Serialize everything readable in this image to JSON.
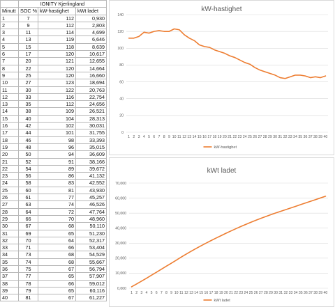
{
  "table": {
    "title": "IONITY Kjerlingland",
    "headers": [
      "Minutt",
      "SOC %",
      "kW-hastighet",
      "kWt ladet"
    ],
    "rows": [
      [
        "1",
        "7",
        "112",
        "0,930"
      ],
      [
        "2",
        "9",
        "112",
        "2,803"
      ],
      [
        "3",
        "11",
        "114",
        "4,699"
      ],
      [
        "4",
        "13",
        "119",
        "6,646"
      ],
      [
        "5",
        "15",
        "118",
        "8,639"
      ],
      [
        "6",
        "17",
        "120",
        "10,617"
      ],
      [
        "7",
        "20",
        "121",
        "12,655"
      ],
      [
        "8",
        "22",
        "120",
        "14,664"
      ],
      [
        "9",
        "25",
        "120",
        "16,660"
      ],
      [
        "10",
        "27",
        "123",
        "18,694"
      ],
      [
        "11",
        "30",
        "122",
        "20,763"
      ],
      [
        "12",
        "33",
        "116",
        "22,754"
      ],
      [
        "13",
        "35",
        "112",
        "24,656"
      ],
      [
        "14",
        "38",
        "109",
        "26,521"
      ],
      [
        "15",
        "40",
        "104",
        "28,313"
      ],
      [
        "16",
        "42",
        "102",
        "30,031"
      ],
      [
        "17",
        "44",
        "101",
        "31,755"
      ],
      [
        "18",
        "46",
        "98",
        "33,393"
      ],
      [
        "19",
        "48",
        "96",
        "35,015"
      ],
      [
        "20",
        "50",
        "94",
        "36,609"
      ],
      [
        "21",
        "52",
        "91",
        "38,166"
      ],
      [
        "22",
        "54",
        "89",
        "39,672"
      ],
      [
        "23",
        "56",
        "86",
        "41,132"
      ],
      [
        "24",
        "58",
        "83",
        "42,552"
      ],
      [
        "25",
        "60",
        "81",
        "43,930"
      ],
      [
        "26",
        "61",
        "77",
        "45,257"
      ],
      [
        "27",
        "63",
        "74",
        "46,526"
      ],
      [
        "28",
        "64",
        "72",
        "47,764"
      ],
      [
        "29",
        "66",
        "70",
        "48,960"
      ],
      [
        "30",
        "67",
        "68",
        "50,110"
      ],
      [
        "31",
        "69",
        "65",
        "51,230"
      ],
      [
        "32",
        "70",
        "64",
        "52,317"
      ],
      [
        "33",
        "71",
        "66",
        "53,404"
      ],
      [
        "34",
        "73",
        "68",
        "54,529"
      ],
      [
        "35",
        "74",
        "68",
        "55,667"
      ],
      [
        "36",
        "75",
        "67",
        "56,794"
      ],
      [
        "37",
        "77",
        "65",
        "57,907"
      ],
      [
        "38",
        "78",
        "66",
        "59,012"
      ],
      [
        "39",
        "79",
        "65",
        "60,116"
      ],
      [
        "40",
        "81",
        "67",
        "61,227"
      ]
    ]
  },
  "chart_data": [
    {
      "type": "line",
      "title": "kW-hastighet",
      "x": [
        1,
        2,
        3,
        4,
        5,
        6,
        7,
        8,
        9,
        10,
        11,
        12,
        13,
        14,
        15,
        16,
        17,
        18,
        19,
        20,
        21,
        22,
        23,
        24,
        25,
        26,
        27,
        28,
        29,
        30,
        31,
        32,
        33,
        34,
        35,
        36,
        37,
        38,
        39,
        40
      ],
      "series": [
        {
          "name": "kW-hastighet",
          "values": [
            112,
            112,
            114,
            119,
            118,
            120,
            121,
            120,
            120,
            123,
            122,
            116,
            112,
            109,
            104,
            102,
            101,
            98,
            96,
            94,
            91,
            89,
            86,
            83,
            81,
            77,
            74,
            72,
            70,
            68,
            65,
            64,
            66,
            68,
            68,
            67,
            65,
            66,
            65,
            67
          ]
        }
      ],
      "ylim": [
        0,
        140
      ],
      "yticks": [
        "0",
        "20",
        "40",
        "60",
        "80",
        "100",
        "120",
        "140"
      ],
      "grid": true,
      "legend": "bottom",
      "color": "#ED7D31"
    },
    {
      "type": "line",
      "title": "kWt ladet",
      "x": [
        1,
        2,
        3,
        4,
        5,
        6,
        7,
        8,
        9,
        10,
        11,
        12,
        13,
        14,
        15,
        16,
        17,
        18,
        19,
        20,
        21,
        22,
        23,
        24,
        25,
        26,
        27,
        28,
        29,
        30,
        31,
        32,
        33,
        34,
        35,
        36,
        37,
        38,
        39,
        40
      ],
      "series": [
        {
          "name": "kWt ladet",
          "values": [
            0.93,
            2.803,
            4.699,
            6.646,
            8.639,
            10.617,
            12.655,
            14.664,
            16.66,
            18.694,
            20.763,
            22.754,
            24.656,
            26.521,
            28.313,
            30.031,
            31.755,
            33.393,
            35.015,
            36.609,
            38.166,
            39.672,
            41.132,
            42.552,
            43.93,
            45.257,
            46.526,
            47.764,
            48.96,
            50.11,
            51.23,
            52.317,
            53.404,
            54.529,
            55.667,
            56.794,
            57.907,
            59.012,
            60.116,
            61.227
          ]
        }
      ],
      "ylim": [
        0,
        70
      ],
      "yticks": [
        "0,000",
        "10,000",
        "20,000",
        "30,000",
        "40,000",
        "50,000",
        "60,000",
        "70,000"
      ],
      "grid": true,
      "legend": "bottom",
      "color": "#ED7D31"
    }
  ]
}
